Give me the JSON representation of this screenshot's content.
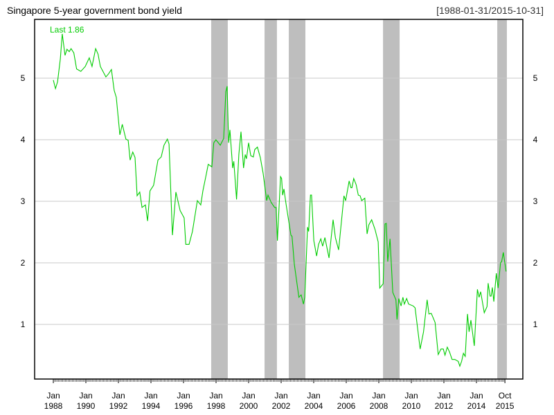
{
  "chart_data": {
    "type": "line",
    "title": "Singapore 5-year government bond yield",
    "date_range": "[1988-01-31/2015-10-31]",
    "last_label": "Last 1.86",
    "xlabel": "",
    "ylabel": "",
    "ylim": [
      0.11,
      5.96
    ],
    "xlim": [
      1987.0,
      2016.7
    ],
    "grid": true,
    "y_ticks": [
      1,
      2,
      3,
      4,
      5
    ],
    "y_tick_labels": [
      "1",
      "2",
      "3",
      "4",
      "5"
    ],
    "x_ticks": [
      {
        "at": 1988,
        "line1": "Jan",
        "line2": "1988"
      },
      {
        "at": 1990,
        "line1": "Jan",
        "line2": "1990"
      },
      {
        "at": 1992,
        "line1": "Jan",
        "line2": "1992"
      },
      {
        "at": 1994,
        "line1": "Jan",
        "line2": "1994"
      },
      {
        "at": 1996,
        "line1": "Jan",
        "line2": "1996"
      },
      {
        "at": 1998,
        "line1": "Jan",
        "line2": "1998"
      },
      {
        "at": 2000,
        "line1": "Jan",
        "line2": "2000"
      },
      {
        "at": 2002,
        "line1": "Jan",
        "line2": "2002"
      },
      {
        "at": 2004,
        "line1": "Jan",
        "line2": "2004"
      },
      {
        "at": 2006,
        "line1": "Jan",
        "line2": "2006"
      },
      {
        "at": 2008,
        "line1": "Jan",
        "line2": "2008"
      },
      {
        "at": 2010,
        "line1": "Jan",
        "line2": "2010"
      },
      {
        "at": 2012,
        "line1": "Jan",
        "line2": "2012"
      },
      {
        "at": 2014,
        "line1": "Jan",
        "line2": "2014"
      },
      {
        "at": 2015.75,
        "line1": "Oct",
        "line2": "2015"
      }
    ],
    "shaded_periods": [
      [
        1997.7,
        1998.72
      ],
      [
        2000.98,
        2001.74
      ],
      [
        2002.47,
        2003.49
      ],
      [
        2008.26,
        2009.28
      ],
      [
        2015.28,
        2015.87
      ]
    ],
    "colors": {
      "line": "#00cc00",
      "shade": "#bebebe",
      "grid": "#c8c8c8",
      "axis": "#000000"
    },
    "series": [
      {
        "name": "Singapore 5-year government bond yield",
        "x": [
          1988.0,
          1988.13,
          1988.26,
          1988.43,
          1988.55,
          1988.72,
          1988.84,
          1988.98,
          1989.09,
          1989.26,
          1989.43,
          1989.69,
          1989.96,
          1990.21,
          1990.38,
          1990.6,
          1990.75,
          1990.89,
          1991.11,
          1991.23,
          1991.39,
          1991.57,
          1991.74,
          1991.87,
          1992.09,
          1992.24,
          1992.46,
          1992.6,
          1992.72,
          1992.88,
          1993.02,
          1993.15,
          1993.31,
          1993.45,
          1993.66,
          1993.79,
          1993.94,
          1994.16,
          1994.43,
          1994.63,
          1994.8,
          1995.01,
          1995.11,
          1995.32,
          1995.53,
          1995.79,
          1996.04,
          1996.14,
          1996.34,
          1996.55,
          1996.85,
          1997.06,
          1997.19,
          1997.36,
          1997.52,
          1997.74,
          1997.86,
          1997.99,
          1998.26,
          1998.47,
          1998.6,
          1998.68,
          1998.77,
          1998.85,
          1999.02,
          1999.09,
          1999.26,
          1999.4,
          1999.53,
          1999.69,
          1999.79,
          1999.87,
          2000.0,
          2000.13,
          2000.29,
          2000.38,
          2000.54,
          2000.72,
          2000.89,
          2001.11,
          2001.19,
          2001.39,
          2001.6,
          2001.69,
          2001.77,
          2001.96,
          2002.03,
          2002.09,
          2002.17,
          2002.3,
          2002.6,
          2002.67,
          2002.81,
          2003.09,
          2003.23,
          2003.37,
          2003.45,
          2003.62,
          2003.69,
          2003.8,
          2003.87,
          2004.01,
          2004.18,
          2004.3,
          2004.44,
          2004.55,
          2004.69,
          2004.94,
          2005.19,
          2005.33,
          2005.53,
          2005.86,
          2005.96,
          2006.18,
          2006.29,
          2006.35,
          2006.46,
          2006.61,
          2006.74,
          2006.85,
          2006.95,
          2007.14,
          2007.28,
          2007.39,
          2007.56,
          2007.77,
          2007.96,
          2008.06,
          2008.27,
          2008.38,
          2008.46,
          2008.55,
          2008.69,
          2008.86,
          2009.05,
          2009.12,
          2009.23,
          2009.37,
          2009.48,
          2009.57,
          2009.71,
          2009.83,
          2010.11,
          2010.23,
          2010.54,
          2010.75,
          2010.97,
          2011.08,
          2011.22,
          2011.32,
          2011.46,
          2011.65,
          2011.82,
          2011.96,
          2012.07,
          2012.21,
          2012.35,
          2012.5,
          2012.67,
          2012.88,
          2012.98,
          2013.09,
          2013.2,
          2013.31,
          2013.45,
          2013.55,
          2013.66,
          2013.87,
          2014.06,
          2014.16,
          2014.26,
          2014.48,
          2014.65,
          2014.72,
          2014.84,
          2014.9,
          2014.98,
          2015.07,
          2015.22,
          2015.33,
          2015.48,
          2015.55,
          2015.65,
          2015.82
        ],
        "y": [
          4.97,
          4.83,
          4.94,
          5.31,
          5.72,
          5.37,
          5.47,
          5.43,
          5.48,
          5.41,
          5.15,
          5.11,
          5.19,
          5.33,
          5.19,
          5.48,
          5.39,
          5.19,
          5.08,
          5.02,
          5.07,
          5.14,
          4.8,
          4.69,
          4.08,
          4.25,
          4.01,
          3.99,
          3.67,
          3.8,
          3.71,
          3.09,
          3.15,
          2.9,
          2.94,
          2.68,
          3.17,
          3.26,
          3.67,
          3.72,
          3.91,
          4.01,
          3.93,
          2.45,
          3.15,
          2.85,
          2.73,
          2.3,
          2.3,
          2.51,
          3.01,
          2.94,
          3.17,
          3.39,
          3.6,
          3.56,
          3.95,
          4.0,
          3.91,
          4.02,
          4.78,
          4.87,
          3.95,
          4.16,
          3.54,
          3.65,
          3.03,
          3.76,
          4.13,
          3.54,
          3.76,
          3.69,
          3.95,
          3.74,
          3.72,
          3.84,
          3.88,
          3.71,
          3.46,
          3.01,
          3.1,
          2.98,
          2.9,
          2.9,
          2.36,
          3.4,
          3.37,
          3.1,
          3.2,
          2.96,
          2.45,
          2.43,
          1.98,
          1.44,
          1.48,
          1.33,
          1.44,
          2.58,
          2.51,
          3.1,
          3.1,
          2.36,
          2.11,
          2.3,
          2.39,
          2.27,
          2.41,
          2.08,
          2.7,
          2.41,
          2.21,
          3.09,
          3.01,
          3.33,
          3.22,
          3.22,
          3.37,
          3.27,
          3.1,
          3.09,
          3.01,
          3.05,
          2.47,
          2.62,
          2.7,
          2.54,
          2.34,
          1.59,
          1.66,
          2.63,
          2.64,
          2.02,
          2.39,
          1.52,
          1.4,
          1.08,
          1.42,
          1.3,
          1.44,
          1.33,
          1.42,
          1.33,
          1.3,
          1.27,
          0.6,
          0.88,
          1.4,
          1.17,
          1.18,
          1.12,
          1.03,
          0.51,
          0.6,
          0.6,
          0.5,
          0.63,
          0.55,
          0.43,
          0.43,
          0.4,
          0.32,
          0.4,
          0.53,
          0.48,
          1.17,
          0.88,
          1.07,
          0.65,
          1.57,
          1.44,
          1.53,
          1.19,
          1.29,
          1.67,
          1.46,
          1.46,
          1.6,
          1.37,
          1.83,
          1.59,
          2.0,
          2.02,
          2.17,
          1.86
        ]
      }
    ]
  }
}
